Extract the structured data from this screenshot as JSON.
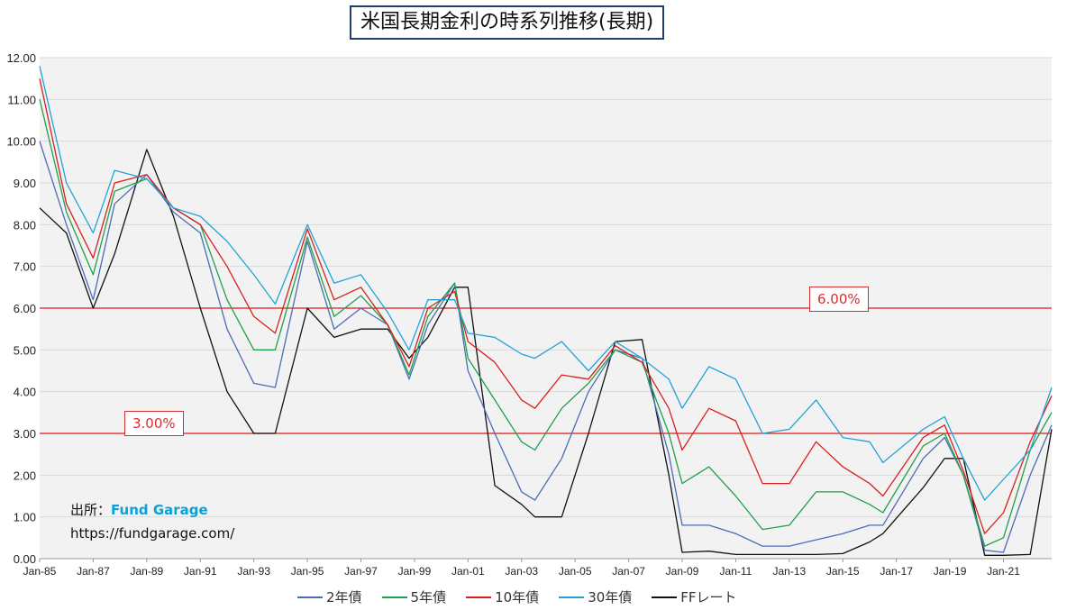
{
  "title": "米国長期金利の時系列推移(長期)",
  "source": {
    "label": "出所：",
    "brand": "Fund Garage",
    "url": "https://fundgarage.com/"
  },
  "reference_lines": [
    {
      "value": 6.0,
      "label": "6.00%"
    },
    {
      "value": 3.0,
      "label": "3.00%"
    }
  ],
  "chart_data": {
    "type": "line",
    "title": "米国長期金利の時系列推移(長期)",
    "xlabel": "",
    "ylabel": "",
    "ylim": [
      0,
      12
    ],
    "yticks": [
      "0.00",
      "1.00",
      "2.00",
      "3.00",
      "4.00",
      "5.00",
      "6.00",
      "7.00",
      "8.00",
      "9.00",
      "10.00",
      "11.00",
      "12.00"
    ],
    "xlim": [
      1985.0,
      2022.8
    ],
    "xticks": [
      "Jan-85",
      "Jan-87",
      "Jan-89",
      "Jan-91",
      "Jan-93",
      "Jan-95",
      "Jan-97",
      "Jan-99",
      "Jan-01",
      "Jan-03",
      "Jan-05",
      "Jan-07",
      "Jan-09",
      "Jan-11",
      "Jan-13",
      "Jan-15",
      "Jan-17",
      "Jan-19",
      "Jan-21"
    ],
    "grid": true,
    "legend_position": "bottom",
    "x": [
      1985.0,
      1986.0,
      1987.0,
      1987.8,
      1989.0,
      1990.0,
      1991.0,
      1992.0,
      1993.0,
      1993.8,
      1995.0,
      1996.0,
      1997.0,
      1998.0,
      1998.8,
      1999.5,
      2000.5,
      2001.0,
      2002.0,
      2003.0,
      2003.5,
      2004.5,
      2005.5,
      2006.5,
      2007.5,
      2008.5,
      2009.0,
      2010.0,
      2011.0,
      2012.0,
      2013.0,
      2014.0,
      2015.0,
      2016.0,
      2016.5,
      2018.0,
      2018.8,
      2019.5,
      2020.3,
      2021.0,
      2022.0,
      2022.8
    ],
    "series": [
      {
        "name": "2年債",
        "color": "#4a6db5",
        "values": [
          10.0,
          8.0,
          6.2,
          8.5,
          9.2,
          8.3,
          7.8,
          5.5,
          4.2,
          4.1,
          7.6,
          5.5,
          6.0,
          5.6,
          4.3,
          5.6,
          6.6,
          4.5,
          3.0,
          1.6,
          1.4,
          2.4,
          4.0,
          5.0,
          4.8,
          2.5,
          0.8,
          0.8,
          0.6,
          0.3,
          0.3,
          0.45,
          0.6,
          0.8,
          0.8,
          2.4,
          2.9,
          2.0,
          0.2,
          0.15,
          2.0,
          3.2
        ]
      },
      {
        "name": "5年債",
        "color": "#1fa04a",
        "values": [
          11.0,
          8.3,
          6.8,
          8.8,
          9.1,
          8.4,
          8.0,
          6.2,
          5.0,
          5.0,
          7.7,
          5.8,
          6.3,
          5.6,
          4.4,
          5.8,
          6.6,
          4.8,
          3.8,
          2.8,
          2.6,
          3.6,
          4.2,
          5.0,
          4.7,
          3.0,
          1.8,
          2.2,
          1.5,
          0.7,
          0.8,
          1.6,
          1.6,
          1.3,
          1.1,
          2.7,
          3.0,
          2.0,
          0.3,
          0.5,
          2.6,
          3.5
        ]
      },
      {
        "name": "10年債",
        "color": "#d81f1f",
        "values": [
          11.5,
          8.5,
          7.2,
          9.0,
          9.2,
          8.4,
          8.0,
          7.0,
          5.8,
          5.4,
          7.9,
          6.2,
          6.5,
          5.6,
          4.6,
          6.0,
          6.4,
          5.2,
          4.7,
          3.8,
          3.6,
          4.4,
          4.3,
          5.1,
          4.7,
          3.6,
          2.6,
          3.6,
          3.3,
          1.8,
          1.8,
          2.8,
          2.2,
          1.8,
          1.5,
          2.9,
          3.2,
          2.1,
          0.6,
          1.1,
          2.8,
          3.9
        ]
      },
      {
        "name": "30年債",
        "color": "#21a3d8",
        "values": [
          11.8,
          9.0,
          7.8,
          9.3,
          9.1,
          8.4,
          8.2,
          7.6,
          6.8,
          6.1,
          8.0,
          6.6,
          6.8,
          5.9,
          5.0,
          6.2,
          6.2,
          5.4,
          5.3,
          4.9,
          4.8,
          5.2,
          4.5,
          5.2,
          4.8,
          4.3,
          3.6,
          4.6,
          4.3,
          3.0,
          3.1,
          3.8,
          2.9,
          2.8,
          2.3,
          3.1,
          3.4,
          2.4,
          1.4,
          1.9,
          2.6,
          4.1
        ]
      },
      {
        "name": "FFレート",
        "color": "#111111",
        "values": [
          8.4,
          7.8,
          6.0,
          7.3,
          9.8,
          8.2,
          6.0,
          4.0,
          3.0,
          3.0,
          6.0,
          5.3,
          5.5,
          5.5,
          4.8,
          5.3,
          6.5,
          6.5,
          1.75,
          1.3,
          1.0,
          1.0,
          3.0,
          5.2,
          5.25,
          2.0,
          0.15,
          0.18,
          0.1,
          0.1,
          0.1,
          0.1,
          0.12,
          0.4,
          0.6,
          1.7,
          2.4,
          2.4,
          0.08,
          0.08,
          0.1,
          3.1
        ]
      }
    ]
  }
}
